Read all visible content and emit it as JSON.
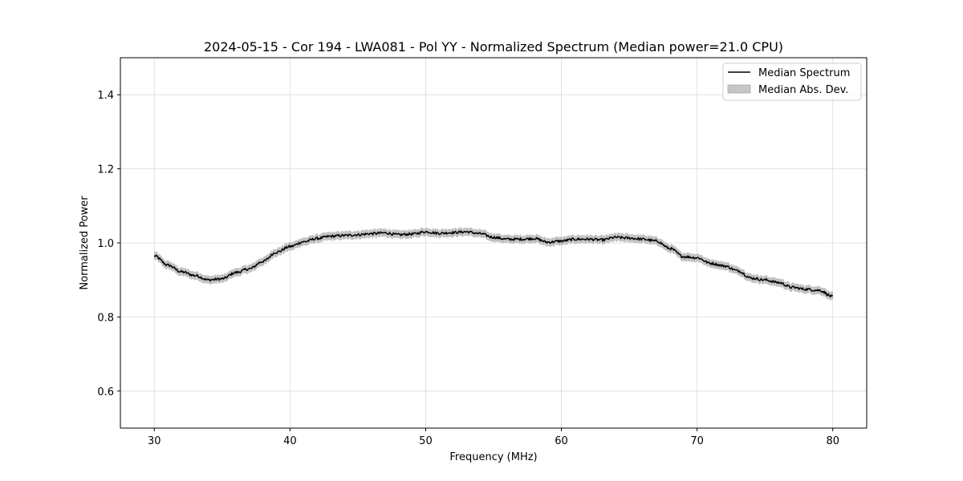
{
  "chart_data": {
    "type": "line",
    "title": "2024-05-15 - Cor 194 - LWA081 - Pol YY - Normalized Spectrum (Median power=21.0 CPU)",
    "xlabel": "Frequency (MHz)",
    "ylabel": "Normalized Power",
    "xlim": [
      27.5,
      82.5
    ],
    "ylim": [
      0.5,
      1.5
    ],
    "xticks": [
      30,
      40,
      50,
      60,
      70,
      80
    ],
    "yticks": [
      0.6,
      0.8,
      1.0,
      1.2,
      1.4
    ],
    "xtick_labels": [
      "30",
      "40",
      "50",
      "60",
      "70",
      "80"
    ],
    "ytick_labels": [
      "0.6",
      "0.8",
      "1.0",
      "1.2",
      "1.4"
    ],
    "grid": true,
    "legend_position": "top-right",
    "legend": [
      "Median Spectrum",
      "Median Abs. Dev."
    ],
    "series": [
      {
        "name": "Median Spectrum",
        "color": "#000000",
        "x": [
          30,
          31,
          32,
          33,
          34,
          35,
          36,
          37,
          38,
          39,
          40,
          41,
          42,
          43,
          44,
          45,
          46,
          47,
          48,
          49,
          50,
          51,
          52,
          53,
          54,
          55,
          56,
          57,
          58,
          59,
          60,
          61,
          62,
          63,
          64,
          65,
          66,
          67,
          68,
          69,
          70,
          71,
          72,
          73,
          74,
          75,
          76,
          77,
          78,
          79,
          80
        ],
        "values": [
          0.965,
          0.94,
          0.922,
          0.912,
          0.9,
          0.903,
          0.92,
          0.93,
          0.95,
          0.975,
          0.99,
          1.003,
          1.012,
          1.018,
          1.02,
          1.022,
          1.025,
          1.027,
          1.022,
          1.024,
          1.03,
          1.026,
          1.028,
          1.03,
          1.025,
          1.015,
          1.01,
          1.01,
          1.012,
          1.002,
          1.005,
          1.01,
          1.01,
          1.008,
          1.015,
          1.013,
          1.01,
          1.005,
          0.985,
          0.963,
          0.96,
          0.945,
          0.938,
          0.925,
          0.905,
          0.9,
          0.893,
          0.88,
          0.875,
          0.872,
          0.855
        ]
      },
      {
        "name": "Median Abs. Dev.",
        "type": "band",
        "color": "#bfbfbf",
        "half_width": 0.01
      }
    ]
  }
}
